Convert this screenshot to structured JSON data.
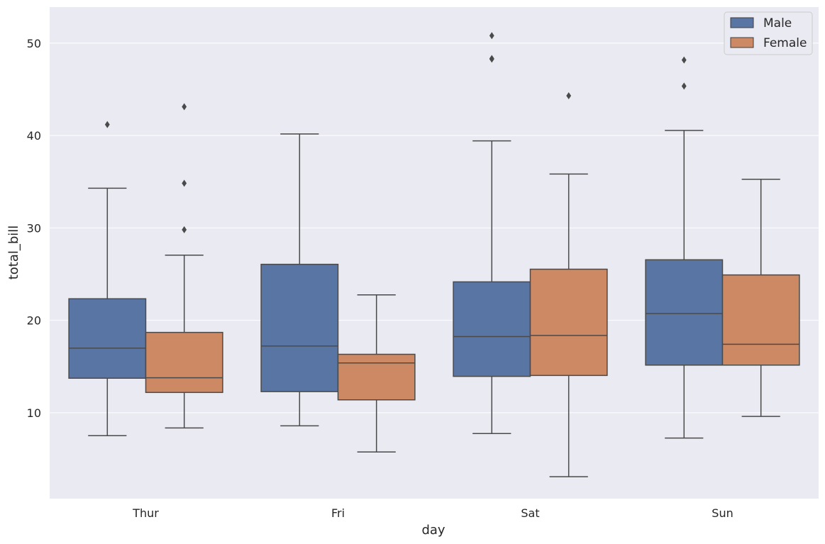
{
  "chart_data": {
    "type": "box",
    "xlabel": "day",
    "ylabel": "total_bill",
    "categories": [
      "Thur",
      "Fri",
      "Sat",
      "Sun"
    ],
    "ylim": [
      0.7,
      53.9
    ],
    "yticks": [
      10,
      20,
      30,
      40,
      50
    ],
    "grid": true,
    "legend_position": "top-right",
    "series": [
      {
        "name": "Male",
        "color": "#5875a4",
        "boxes": [
          {
            "whisker_low": 7.51,
            "q1": 13.73,
            "median": 16.98,
            "q3": 22.33,
            "whisker_high": 34.3,
            "fliers": [
              41.19
            ]
          },
          {
            "whisker_low": 8.58,
            "q1": 12.28,
            "median": 17.21,
            "q3": 26.06,
            "whisker_high": 40.17,
            "fliers": []
          },
          {
            "whisker_low": 7.74,
            "q1": 13.93,
            "median": 18.24,
            "q3": 24.16,
            "whisker_high": 39.42,
            "fliers": [
              48.27,
              48.33,
              50.81
            ]
          },
          {
            "whisker_low": 7.25,
            "q1": 15.15,
            "median": 20.73,
            "q3": 26.55,
            "whisker_high": 40.55,
            "fliers": [
              45.35,
              48.17
            ]
          }
        ]
      },
      {
        "name": "Female",
        "color": "#cc8963",
        "boxes": [
          {
            "whisker_low": 8.35,
            "q1": 12.19,
            "median": 13.78,
            "q3": 18.69,
            "whisker_high": 27.05,
            "fliers": [
              29.8,
              34.83,
              43.11
            ]
          },
          {
            "whisker_low": 5.75,
            "q1": 11.39,
            "median": 15.38,
            "q3": 16.32,
            "whisker_high": 22.75,
            "fliers": []
          },
          {
            "whisker_low": 3.07,
            "q1": 14.03,
            "median": 18.36,
            "q3": 25.53,
            "whisker_high": 35.83,
            "fliers": [
              44.3
            ]
          },
          {
            "whisker_low": 9.6,
            "q1": 15.15,
            "median": 17.41,
            "q3": 24.91,
            "whisker_high": 35.26,
            "fliers": []
          }
        ]
      }
    ]
  }
}
